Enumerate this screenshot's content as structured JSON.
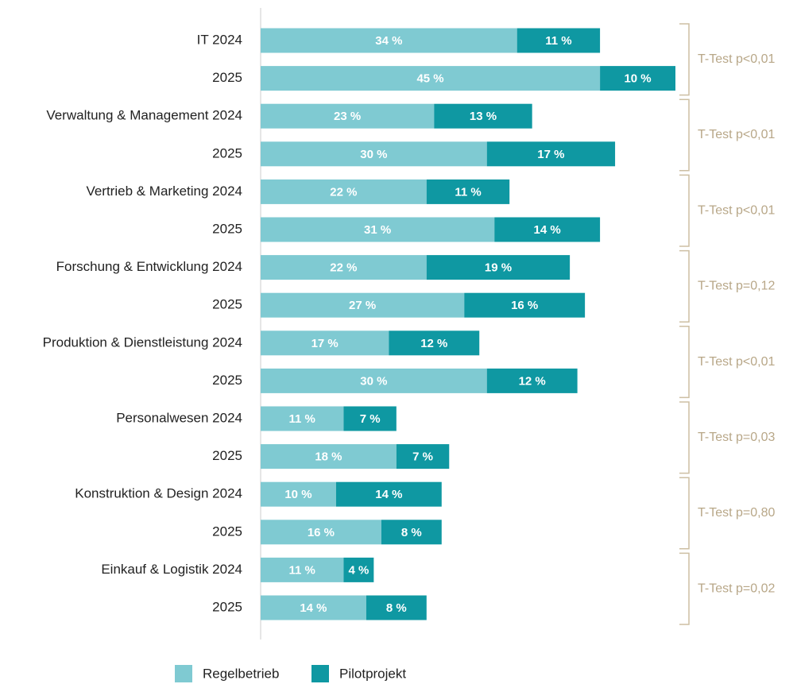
{
  "chart_data": {
    "type": "stacked-bar-horizontal",
    "categories": [
      "IT 2024",
      "2025",
      "Verwaltung & Management 2024",
      "2025",
      "Vertrieb & Marketing 2024",
      "2025",
      "Forschung & Entwicklung 2024",
      "2025",
      "Produktion & Dienstleistung 2024",
      "2025",
      "Personalwesen 2024",
      "2025",
      "Konstruktion & Design 2024",
      "2025",
      "Einkauf & Logistik 2024",
      "2025"
    ],
    "series": [
      {
        "name": "Regelbetrieb",
        "color": "#7fcad2",
        "values": [
          34,
          45,
          23,
          30,
          22,
          31,
          22,
          27,
          17,
          30,
          11,
          18,
          10,
          16,
          11,
          14
        ],
        "value_labels": [
          "34 %",
          "45 %",
          "23 %",
          "30 %",
          "22 %",
          "31 %",
          "22 %",
          "27 %",
          "17 %",
          "30 %",
          "11 %",
          "18 %",
          "10 %",
          "16 %",
          "11 %",
          "14 %"
        ]
      },
      {
        "name": "Pilotprojekt",
        "color": "#0f98a2",
        "values": [
          11,
          10,
          13,
          17,
          11,
          14,
          19,
          16,
          12,
          12,
          7,
          7,
          14,
          8,
          4,
          8
        ],
        "value_labels": [
          "11 %",
          "10 %",
          "13 %",
          "17 %",
          "11 %",
          "14 %",
          "19 %",
          "16 %",
          "12 %",
          "12 %",
          "7 %",
          "7 %",
          "14 %",
          "8 %",
          "4 %",
          "8 %"
        ]
      }
    ],
    "annotations": [
      "T-Test p<0,01",
      "T-Test p<0,01",
      "T-Test p<0,01",
      "T-Test p=0,12",
      "T-Test p<0,01",
      "T-Test p=0,03",
      "T-Test p=0,80",
      "T-Test p=0,02"
    ],
    "legend": "bottom"
  }
}
